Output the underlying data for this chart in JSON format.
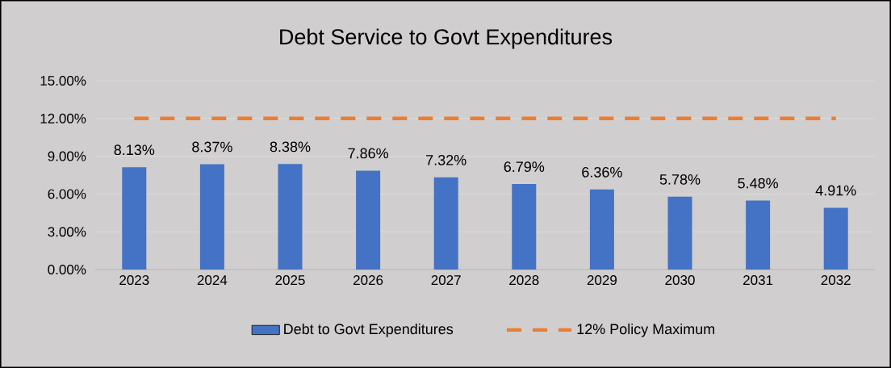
{
  "chart_data": {
    "type": "bar",
    "title": "Debt Service to Govt Expenditures",
    "categories": [
      "2023",
      "2024",
      "2025",
      "2026",
      "2027",
      "2028",
      "2029",
      "2030",
      "2031",
      "2032"
    ],
    "series": [
      {
        "name": "Debt to Govt Expenditures",
        "color": "#4472c4",
        "values": [
          8.13,
          8.37,
          8.38,
          7.86,
          7.32,
          6.79,
          6.36,
          5.78,
          5.48,
          4.91
        ],
        "value_labels": [
          "8.13%",
          "8.37%",
          "8.38%",
          "7.86%",
          "7.32%",
          "6.79%",
          "6.36%",
          "5.78%",
          "5.48%",
          "4.91%"
        ]
      },
      {
        "name": "12% Policy Maximum",
        "type": "line",
        "color": "#ed7d31",
        "line_style": "dashed",
        "values": [
          12,
          12,
          12,
          12,
          12,
          12,
          12,
          12,
          12,
          12
        ]
      }
    ],
    "ylim": [
      0,
      15
    ],
    "yticks": [
      {
        "value": 0,
        "label": "0.00%"
      },
      {
        "value": 3,
        "label": "3.00%"
      },
      {
        "value": 6,
        "label": "6.00%"
      },
      {
        "value": 9,
        "label": "9.00%"
      },
      {
        "value": 12,
        "label": "12.00%"
      },
      {
        "value": 15,
        "label": "15.00%"
      }
    ],
    "grid": "y",
    "legend": "bottom"
  }
}
